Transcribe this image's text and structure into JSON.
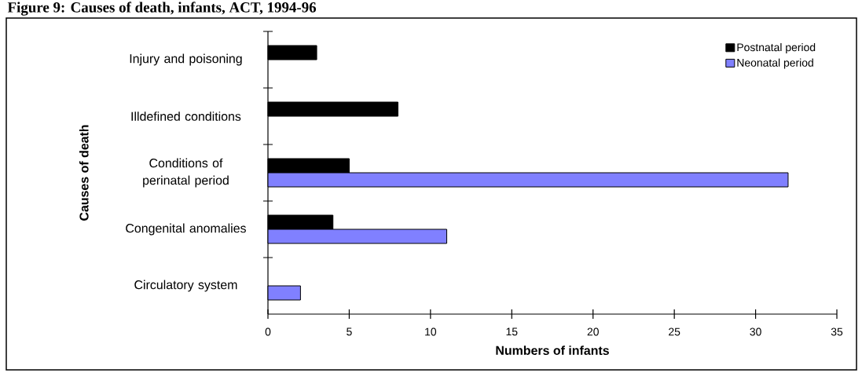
{
  "chart_data": {
    "type": "bar",
    "orientation": "horizontal",
    "title": "Figure 9: Causes of death, infants, ACT, 1994-96",
    "xlabel": "Numbers of infants",
    "ylabel": "Causes of death",
    "categories": [
      "Injury and poisoning",
      "Illdefined conditions",
      "Conditions of perinatal period",
      "Congenital anomalies",
      "Circulatory system"
    ],
    "series": [
      {
        "name": "Postnatal period",
        "color": "#000000",
        "values": [
          3,
          8,
          5,
          4,
          null
        ]
      },
      {
        "name": "Neonatal period",
        "color": "#8080ff",
        "values": [
          null,
          null,
          32,
          11,
          2
        ]
      }
    ],
    "xlim": [
      0,
      35
    ],
    "xticks": [
      0,
      5,
      10,
      15,
      20,
      25,
      30,
      35
    ],
    "grid": false,
    "legend": "top right"
  }
}
